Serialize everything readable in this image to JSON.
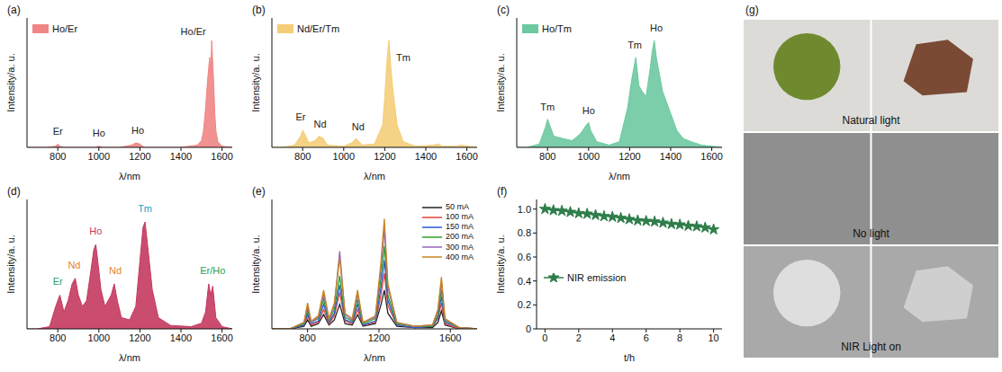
{
  "chart_data": [
    {
      "panel": "(a)",
      "type": "area",
      "x_label": "λ/nm",
      "y_label": "Intensity/a. u.",
      "tick_labels": "x",
      "legend": "upper left",
      "xlim": [
        650,
        1650
      ],
      "xticks": [
        800,
        1000,
        1200,
        1400,
        1600
      ],
      "ylim": [
        0,
        1.15
      ],
      "x": [
        650,
        700,
        750,
        790,
        800,
        810,
        830,
        900,
        980,
        1000,
        1020,
        1100,
        1160,
        1180,
        1200,
        1220,
        1300,
        1400,
        1480,
        1500,
        1510,
        1520,
        1530,
        1535,
        1540,
        1545,
        1550,
        1555,
        1560,
        1565,
        1570,
        1580,
        1600,
        1650
      ],
      "series": [
        {
          "name": "Ho/Er",
          "color": "#f08585",
          "values": [
            0,
            0,
            0,
            0.01,
            0.03,
            0.01,
            0,
            0,
            0,
            0.01,
            0,
            0,
            0.02,
            0.04,
            0.03,
            0,
            0,
            0,
            0.02,
            0.06,
            0.15,
            0.35,
            0.6,
            0.7,
            0.8,
            0.65,
            0.95,
            0.75,
            0.55,
            0.3,
            0.15,
            0.05,
            0.01,
            0
          ]
        }
      ],
      "annotations": [
        {
          "text": "Er",
          "x": 800,
          "y": 0.06
        },
        {
          "text": "Ho",
          "x": 1000,
          "y": 0.05
        },
        {
          "text": "Ho",
          "x": 1190,
          "y": 0.07
        },
        {
          "text": "Ho/Er",
          "x": 1460,
          "y": 0.95
        }
      ]
    },
    {
      "panel": "(b)",
      "type": "area",
      "x_label": "λ/nm",
      "y_label": "Intensity/a. u.",
      "tick_labels": "x",
      "legend": "upper left",
      "xlim": [
        650,
        1650
      ],
      "xticks": [
        800,
        1000,
        1200,
        1400,
        1600
      ],
      "ylim": [
        0,
        1.15
      ],
      "x": [
        650,
        700,
        760,
        790,
        800,
        810,
        830,
        860,
        880,
        900,
        920,
        1000,
        1040,
        1060,
        1070,
        1090,
        1150,
        1190,
        1200,
        1210,
        1220,
        1230,
        1240,
        1260,
        1290,
        1350,
        1440,
        1460,
        1480,
        1550,
        1570,
        1650
      ],
      "series": [
        {
          "name": "Nd/Er/Tm",
          "color": "#f4cd78",
          "values": [
            0,
            0,
            0.02,
            0.1,
            0.15,
            0.12,
            0.04,
            0.06,
            0.1,
            0.08,
            0.02,
            0.01,
            0.04,
            0.08,
            0.06,
            0.02,
            0.03,
            0.2,
            0.45,
            0.75,
            0.95,
            0.7,
            0.5,
            0.2,
            0.05,
            0.01,
            0.02,
            0.03,
            0.01,
            0.01,
            0.02,
            0
          ]
        }
      ],
      "annotations": [
        {
          "text": "Er",
          "x": 790,
          "y": 0.19
        },
        {
          "text": "Nd",
          "x": 885,
          "y": 0.13
        },
        {
          "text": "Nd",
          "x": 1070,
          "y": 0.1
        },
        {
          "text": "Tm",
          "x": 1290,
          "y": 0.72
        }
      ]
    },
    {
      "panel": "(c)",
      "type": "area",
      "x_label": "λ/nm",
      "y_label": "Intensity/a. u.",
      "tick_labels": "x",
      "legend": "upper left",
      "xlim": [
        650,
        1650
      ],
      "xticks": [
        800,
        1000,
        1200,
        1400,
        1600
      ],
      "ylim": [
        0,
        1.15
      ],
      "x": [
        650,
        700,
        760,
        790,
        800,
        810,
        830,
        870,
        920,
        960,
        990,
        1000,
        1010,
        1040,
        1100,
        1150,
        1190,
        1210,
        1230,
        1245,
        1260,
        1280,
        1300,
        1310,
        1320,
        1330,
        1345,
        1360,
        1380,
        1400,
        1430,
        1460,
        1500,
        1550,
        1600,
        1650
      ],
      "series": [
        {
          "name": "Ho/Tm",
          "color": "#6dc9a0",
          "values": [
            0,
            0,
            0.03,
            0.18,
            0.25,
            0.2,
            0.1,
            0.08,
            0.06,
            0.12,
            0.2,
            0.22,
            0.15,
            0.05,
            0.02,
            0.05,
            0.35,
            0.6,
            0.8,
            0.55,
            0.5,
            0.45,
            0.7,
            0.85,
            0.95,
            0.8,
            0.65,
            0.5,
            0.4,
            0.3,
            0.15,
            0.08,
            0.05,
            0.02,
            0.01,
            0
          ]
        }
      ],
      "annotations": [
        {
          "text": "Tm",
          "x": 800,
          "y": 0.28
        },
        {
          "text": "Ho",
          "x": 1000,
          "y": 0.25
        },
        {
          "text": "Tm",
          "x": 1225,
          "y": 0.83
        },
        {
          "text": "Ho",
          "x": 1330,
          "y": 0.98
        }
      ]
    },
    {
      "panel": "(d)",
      "type": "area",
      "x_label": "λ/nm",
      "y_label": "Intensity/a. u.",
      "tick_labels": "x",
      "xlim": [
        650,
        1650
      ],
      "xticks": [
        800,
        1000,
        1200,
        1400,
        1600
      ],
      "ylim": [
        0,
        1.15
      ],
      "x": [
        650,
        700,
        760,
        790,
        810,
        830,
        850,
        870,
        885,
        900,
        920,
        940,
        960,
        975,
        985,
        995,
        1010,
        1030,
        1060,
        1075,
        1090,
        1110,
        1150,
        1180,
        1200,
        1215,
        1225,
        1240,
        1260,
        1290,
        1350,
        1450,
        1500,
        1520,
        1535,
        1545,
        1555,
        1570,
        1600,
        1650
      ],
      "series": [
        {
          "color": "#c4395e",
          "values": [
            0,
            0,
            0.02,
            0.2,
            0.3,
            0.15,
            0.25,
            0.4,
            0.45,
            0.3,
            0.2,
            0.25,
            0.5,
            0.7,
            0.75,
            0.6,
            0.35,
            0.2,
            0.3,
            0.4,
            0.25,
            0.1,
            0.08,
            0.2,
            0.6,
            0.9,
            0.95,
            0.7,
            0.35,
            0.1,
            0.03,
            0.02,
            0.05,
            0.15,
            0.4,
            0.3,
            0.38,
            0.1,
            0.02,
            0
          ]
        }
      ],
      "annotations": [
        {
          "text": "Er",
          "x": 800,
          "y": 0.34,
          "color": "#2e9e4f"
        },
        {
          "text": "Nd",
          "x": 880,
          "y": 0.49,
          "color": "#e0851f"
        },
        {
          "text": "Ho",
          "x": 985,
          "y": 0.79,
          "color": "#c4395e"
        },
        {
          "text": "Nd",
          "x": 1080,
          "y": 0.44,
          "color": "#e0851f"
        },
        {
          "text": "Tm",
          "x": 1225,
          "y": 0.99,
          "color": "#1a9fc9"
        },
        {
          "text": "Er/Ho",
          "x": 1555,
          "y": 0.44,
          "color": "#2e9e4f"
        }
      ]
    },
    {
      "panel": "(e)",
      "type": "line",
      "x_label": "λ/nm",
      "y_label": "Intensity/a. u.",
      "tick_labels": "x",
      "legend": "upper right",
      "xlim": [
        600,
        1750
      ],
      "xticks": [
        800,
        1200,
        1600
      ],
      "ylim": [
        0,
        1
      ],
      "x": [
        600,
        700,
        780,
        800,
        820,
        860,
        890,
        920,
        950,
        980,
        1010,
        1050,
        1080,
        1110,
        1180,
        1210,
        1230,
        1250,
        1300,
        1400,
        1500,
        1530,
        1550,
        1570,
        1650,
        1750
      ],
      "series": [
        {
          "name": "50 mA",
          "color": "#222222",
          "values": [
            0,
            0,
            0.02,
            0.07,
            0.02,
            0.04,
            0.11,
            0.03,
            0.07,
            0.19,
            0.04,
            0.03,
            0.11,
            0.02,
            0.04,
            0.18,
            0.3,
            0.12,
            0.02,
            0.01,
            0.01,
            0.05,
            0.14,
            0.03,
            0,
            0
          ]
        },
        {
          "name": "100 mA",
          "color": "#e8423a",
          "values": [
            0,
            0,
            0.03,
            0.1,
            0.03,
            0.05,
            0.15,
            0.04,
            0.1,
            0.28,
            0.06,
            0.04,
            0.15,
            0.03,
            0.05,
            0.25,
            0.43,
            0.18,
            0.03,
            0.01,
            0.02,
            0.08,
            0.2,
            0.04,
            0,
            0
          ]
        },
        {
          "name": "150 mA",
          "color": "#2a5bd7",
          "values": [
            0,
            0,
            0.03,
            0.12,
            0.04,
            0.06,
            0.19,
            0.05,
            0.12,
            0.34,
            0.07,
            0.05,
            0.19,
            0.03,
            0.06,
            0.31,
            0.53,
            0.22,
            0.03,
            0.01,
            0.02,
            0.09,
            0.25,
            0.05,
            0.01,
            0
          ]
        },
        {
          "name": "200 mA",
          "color": "#2ca02c",
          "values": [
            0,
            0,
            0.04,
            0.15,
            0.05,
            0.08,
            0.23,
            0.06,
            0.15,
            0.41,
            0.09,
            0.06,
            0.23,
            0.04,
            0.08,
            0.38,
            0.64,
            0.26,
            0.04,
            0.02,
            0.02,
            0.11,
            0.3,
            0.06,
            0.01,
            0
          ]
        },
        {
          "name": "300 mA",
          "color": "#9467bd",
          "values": [
            0,
            0,
            0.05,
            0.18,
            0.05,
            0.09,
            0.27,
            0.07,
            0.18,
            0.6,
            0.11,
            0.07,
            0.27,
            0.05,
            0.09,
            0.45,
            0.77,
            0.32,
            0.05,
            0.02,
            0.03,
            0.14,
            0.36,
            0.07,
            0.01,
            0
          ]
        },
        {
          "name": "400 mA",
          "color": "#c8841f",
          "values": [
            0,
            0,
            0.05,
            0.2,
            0.06,
            0.1,
            0.3,
            0.08,
            0.2,
            0.55,
            0.12,
            0.08,
            0.3,
            0.05,
            0.1,
            0.5,
            0.85,
            0.35,
            0.05,
            0.02,
            0.03,
            0.15,
            0.4,
            0.08,
            0.01,
            0
          ]
        }
      ]
    },
    {
      "panel": "(f)",
      "type": "line",
      "x_label": "t/h",
      "y_label": "Intensity/a. u.",
      "legend": "center left",
      "xlim": [
        -0.5,
        10.5
      ],
      "xticks": [
        0,
        2,
        4,
        6,
        8,
        10
      ],
      "ylim": [
        0,
        1.08
      ],
      "yticks": [
        0,
        0.2,
        0.4,
        0.6,
        0.8,
        {
          "value": 1,
          "label": "1.0"
        }
      ],
      "x": [
        0,
        0.5,
        1,
        1.5,
        2,
        2.5,
        3,
        3.5,
        4,
        4.5,
        5,
        5.5,
        6,
        6.5,
        7,
        7.5,
        8,
        8.5,
        9,
        9.5,
        10
      ],
      "series": [
        {
          "name": "NIR emission",
          "color": "#2e7d4a",
          "marker": "star",
          "values": [
            1,
            0.99,
            0.985,
            0.975,
            0.965,
            0.96,
            0.95,
            0.94,
            0.935,
            0.925,
            0.915,
            0.905,
            0.9,
            0.895,
            0.885,
            0.875,
            0.87,
            0.86,
            0.855,
            0.845,
            0.83
          ]
        }
      ]
    }
  ],
  "photo_panel": {
    "label": "(g)",
    "captions": [
      "Natural light",
      "No light",
      "NIR Light on"
    ]
  }
}
